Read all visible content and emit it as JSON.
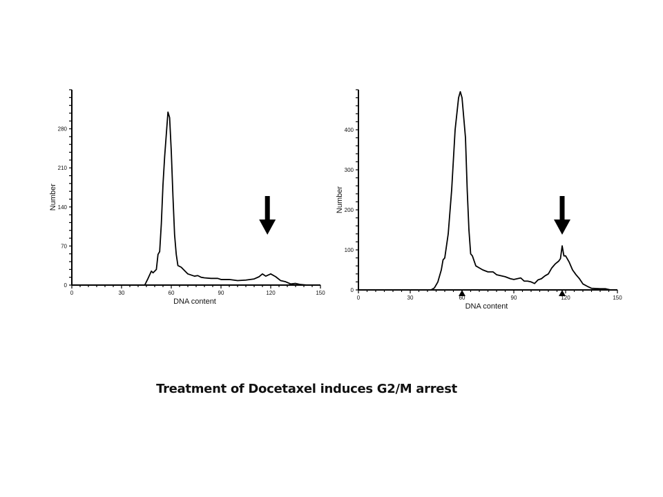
{
  "caption": "Treatment of Docetaxel induces G2/M arrest",
  "chart_data": [
    {
      "type": "line",
      "xlabel": "DNA content",
      "ylabel": "Number",
      "xlim": [
        0,
        150
      ],
      "ylim": [
        0,
        350
      ],
      "xticks": [
        0,
        30,
        60,
        90,
        120,
        150
      ],
      "yticks": [
        0,
        70,
        140,
        210,
        280
      ],
      "arrow_at_x": 118,
      "x": [
        44,
        46,
        48,
        49,
        51,
        52,
        53,
        54,
        55,
        56,
        57,
        58,
        59,
        60,
        61,
        62,
        63,
        64,
        66,
        68,
        70,
        72,
        74,
        76,
        78,
        80,
        84,
        88,
        90,
        95,
        100,
        105,
        110,
        113,
        115,
        117,
        120,
        123,
        126,
        129,
        132,
        135,
        138,
        142
      ],
      "y": [
        0,
        12,
        25,
        22,
        28,
        55,
        60,
        110,
        180,
        230,
        270,
        310,
        300,
        240,
        160,
        90,
        55,
        35,
        32,
        26,
        20,
        18,
        16,
        17,
        14,
        13,
        12,
        12,
        10,
        10,
        8,
        9,
        11,
        15,
        20,
        16,
        20,
        15,
        8,
        6,
        2,
        3,
        1,
        0
      ]
    },
    {
      "type": "line",
      "xlabel": "DNA content",
      "ylabel": "Number",
      "xlim": [
        0,
        150
      ],
      "ylim": [
        0,
        500
      ],
      "xticks": [
        0,
        30,
        60,
        90,
        120,
        150
      ],
      "yticks": [
        0,
        100,
        200,
        300,
        400
      ],
      "arrow_at_x": 118,
      "markers_at_x": [
        60,
        118
      ],
      "x": [
        42,
        44,
        46,
        48,
        49,
        50,
        52,
        54,
        56,
        58,
        59,
        60,
        62,
        63,
        64,
        65,
        66,
        68,
        70,
        72,
        75,
        78,
        80,
        85,
        88,
        90,
        94,
        96,
        98,
        100,
        102,
        104,
        106,
        108,
        110,
        112,
        114,
        116,
        117,
        118,
        119,
        120,
        122,
        124,
        126,
        128,
        130,
        133,
        135,
        140,
        143,
        146
      ],
      "y": [
        0,
        5,
        20,
        50,
        75,
        80,
        140,
        250,
        400,
        480,
        495,
        480,
        380,
        250,
        150,
        90,
        85,
        60,
        55,
        50,
        45,
        45,
        38,
        33,
        28,
        26,
        30,
        22,
        22,
        20,
        16,
        25,
        28,
        35,
        40,
        55,
        65,
        72,
        78,
        110,
        85,
        85,
        70,
        50,
        38,
        28,
        15,
        8,
        4,
        3,
        3,
        0
      ]
    }
  ]
}
